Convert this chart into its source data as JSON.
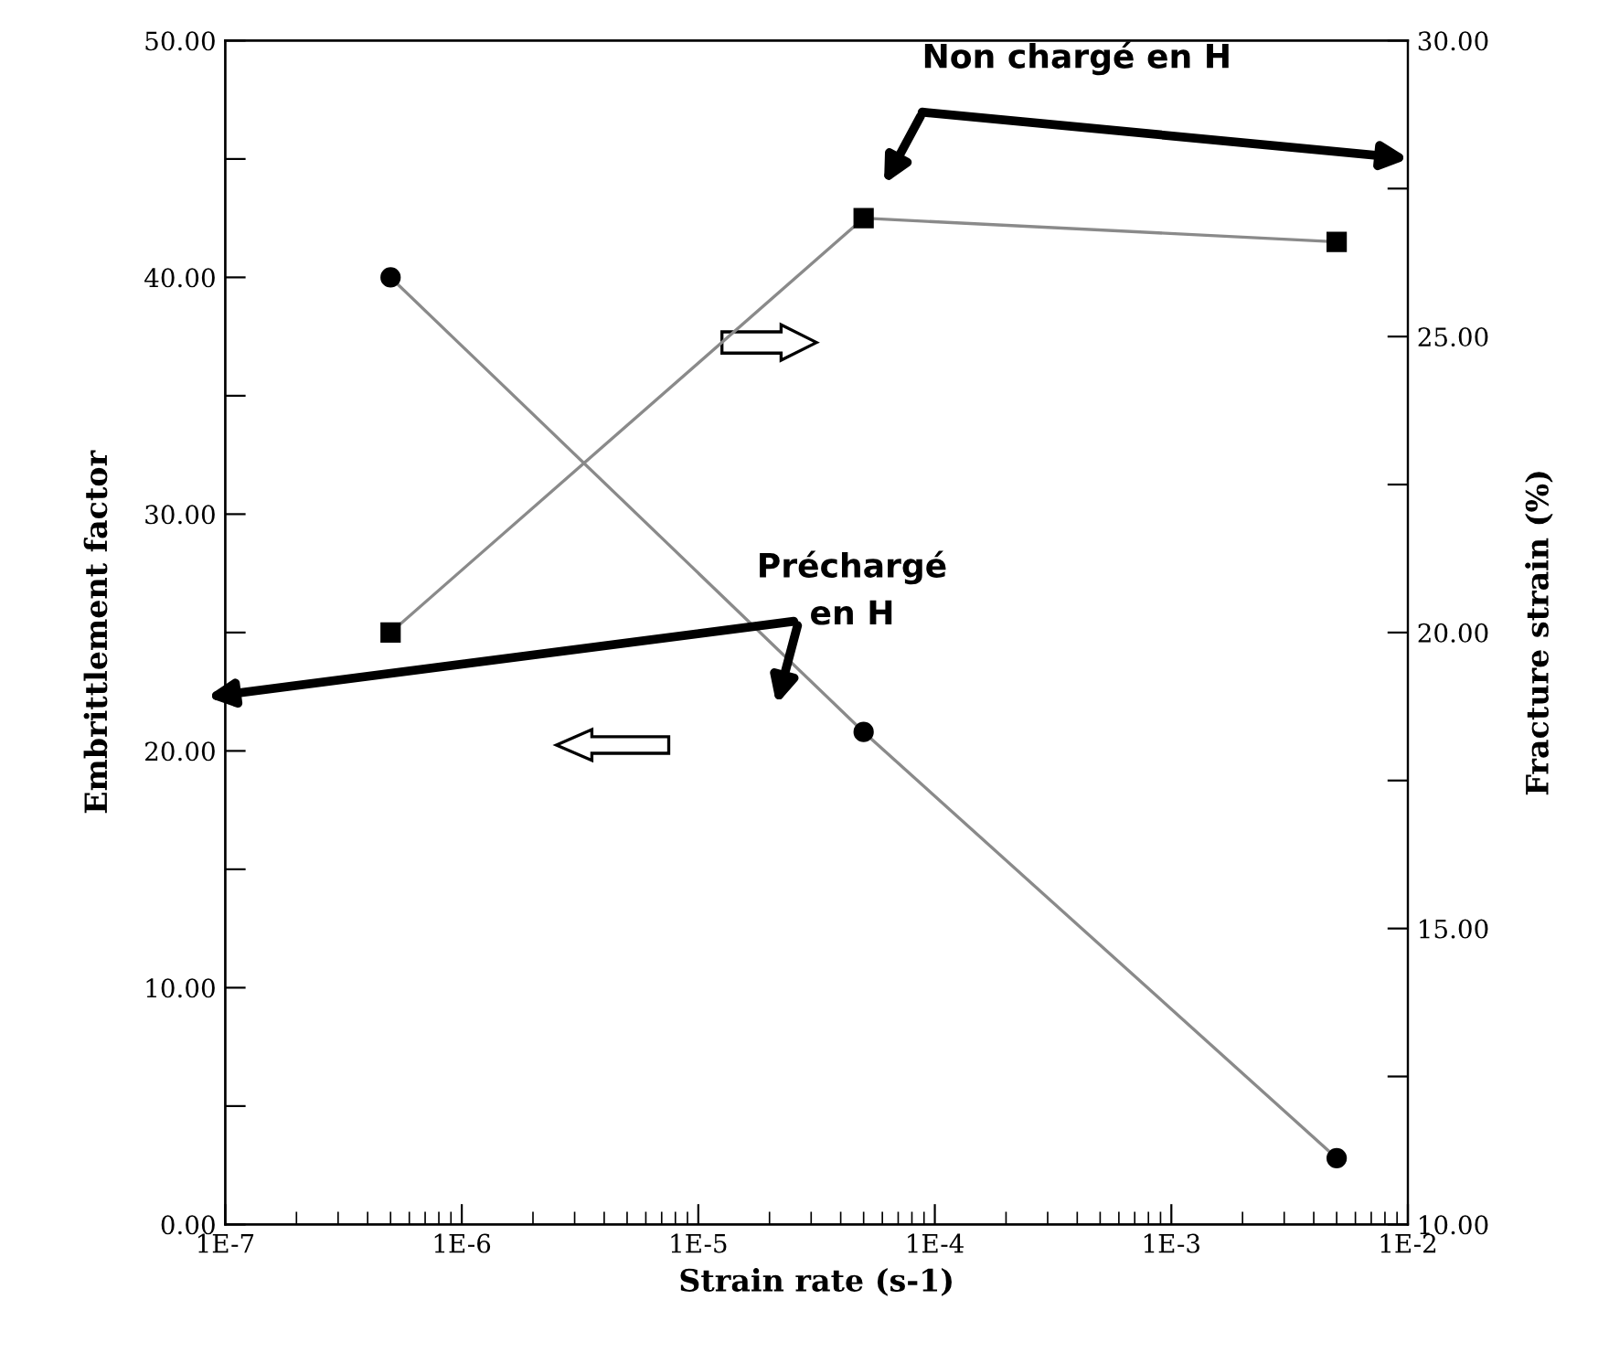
{
  "chart_data": {
    "type": "line",
    "xlabel": "Strain rate (s-1)",
    "ylabel": "Embrittlement factor",
    "y2label": "Fracture strain (%)",
    "log": "x",
    "xlim": [
      1e-07,
      0.01
    ],
    "xticks": [
      {
        "value": 1e-07,
        "label": "1E-7"
      },
      {
        "value": 1e-06,
        "label": "1E-6"
      },
      {
        "value": 1e-05,
        "label": "1E-5"
      },
      {
        "value": 0.0001,
        "label": "1E-4"
      },
      {
        "value": 0.001,
        "label": "1E-3"
      },
      {
        "value": 0.01,
        "label": "1E-2"
      }
    ],
    "ylim": [
      0,
      50
    ],
    "yticks": [
      {
        "value": 0,
        "label": "0.00"
      },
      {
        "value": 5,
        "label": null
      },
      {
        "value": 10,
        "label": "10.00"
      },
      {
        "value": 15,
        "label": null
      },
      {
        "value": 20,
        "label": "20.00"
      },
      {
        "value": 25,
        "label": null
      },
      {
        "value": 30,
        "label": "30.00"
      },
      {
        "value": 35,
        "label": null
      },
      {
        "value": 40,
        "label": "40.00"
      },
      {
        "value": 45,
        "label": null
      },
      {
        "value": 50,
        "label": "50.00"
      }
    ],
    "y2lim": [
      10,
      30
    ],
    "y2ticks": [
      {
        "value": 10,
        "label": "10.00"
      },
      {
        "value": 12.5,
        "label": null
      },
      {
        "value": 15,
        "label": "15.00"
      },
      {
        "value": 17.5,
        "label": null
      },
      {
        "value": 20,
        "label": "20.00"
      },
      {
        "value": 22.5,
        "label": null
      },
      {
        "value": 25,
        "label": "25.00"
      },
      {
        "value": 27.5,
        "label": null
      },
      {
        "value": 30,
        "label": "30.00"
      }
    ],
    "grid": false,
    "legend": false,
    "series": [
      {
        "color": "#000000",
        "marker": "circle",
        "x": [
          5e-07,
          5e-05,
          0.005
        ],
        "values": [
          40.0,
          20.8,
          2.8
        ]
      },
      {
        "color": "#000000",
        "marker": "square",
        "axis": "y2",
        "x": [
          5e-07,
          5e-05,
          0.005
        ],
        "values": [
          20.0,
          27.0,
          26.6
        ]
      }
    ],
    "annotations": [
      "Non chargé en H",
      "Préchargé\nen H"
    ]
  }
}
